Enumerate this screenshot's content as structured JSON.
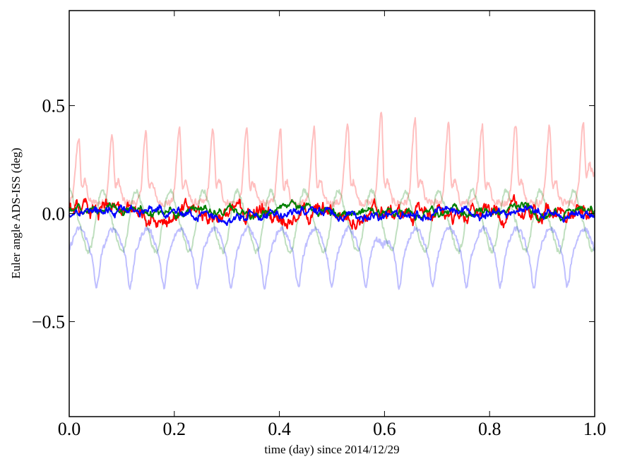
{
  "chart_data": {
    "type": "line",
    "title": "",
    "xlabel": "time (day) since 2014/12/29",
    "ylabel": "Euler angle ADS-ISS (deg)",
    "xlim": [
      0.0,
      1.0
    ],
    "ylim": [
      -0.94,
      0.94
    ],
    "x_ticks": [
      0.0,
      0.2,
      0.4,
      0.6,
      0.8,
      1.0
    ],
    "x_tick_labels": [
      "0.0",
      "0.2",
      "0.4",
      "0.6",
      "0.8",
      "1.0"
    ],
    "y_ticks": [
      -0.5,
      0.0,
      0.5
    ],
    "y_tick_labels": [
      "−0.5",
      "0.0",
      "0.5"
    ],
    "grid": false,
    "legend": "none",
    "series": [
      {
        "color": "#ff0000",
        "opacity": 0.25,
        "periodic_peaks": [
          {
            "x": 0.018,
            "y": 0.35
          },
          {
            "x": 0.082,
            "y": 0.36
          },
          {
            "x": 0.146,
            "y": 0.37
          },
          {
            "x": 0.21,
            "y": 0.39
          },
          {
            "x": 0.274,
            "y": 0.39
          },
          {
            "x": 0.338,
            "y": 0.39
          },
          {
            "x": 0.402,
            "y": 0.39
          },
          {
            "x": 0.466,
            "y": 0.39
          },
          {
            "x": 0.53,
            "y": 0.42
          },
          {
            "x": 0.597,
            "y": 0.46
          },
          {
            "x": 0.66,
            "y": 0.43
          },
          {
            "x": 0.724,
            "y": 0.41
          },
          {
            "x": 0.789,
            "y": 0.41
          },
          {
            "x": 0.853,
            "y": 0.42
          },
          {
            "x": 0.917,
            "y": 0.4
          },
          {
            "x": 0.98,
            "y": 0.39
          }
        ],
        "baseline": [
          0.0,
          0.2
        ],
        "end_value": 0.2
      },
      {
        "color": "#008000",
        "opacity": 0.25,
        "periodic_range": [
          -0.17,
          0.1
        ],
        "period_day": 0.064
      },
      {
        "color": "#0000ff",
        "opacity": 0.25,
        "periodic_range": [
          -0.33,
          -0.06
        ],
        "period_day": 0.064,
        "min_value": -0.35,
        "min_at": 0.597
      },
      {
        "color": "#ff0000",
        "opacity": 1.0,
        "range": [
          -0.09,
          0.09
        ]
      },
      {
        "color": "#008000",
        "opacity": 1.0,
        "range": [
          -0.05,
          0.07
        ]
      },
      {
        "color": "#0000ff",
        "opacity": 1.0,
        "range": [
          -0.06,
          0.07
        ]
      }
    ]
  }
}
